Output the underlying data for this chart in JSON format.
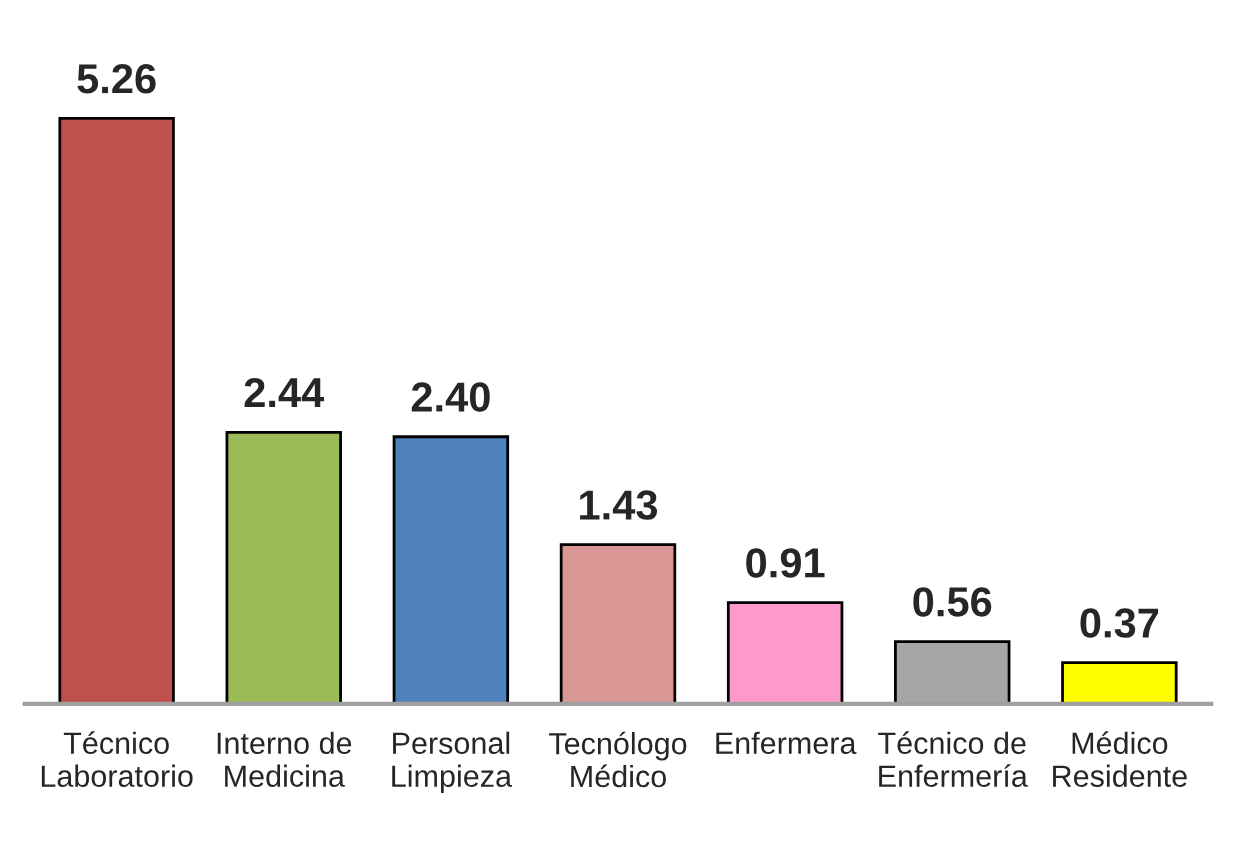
{
  "chart_data": {
    "type": "bar",
    "categories": [
      "Técnico\nLaboratorio",
      "Interno de\nMedicina",
      "Personal\nLimpieza",
      "Tecnólogo\nMédico",
      "Enfermera",
      "Técnico de\nEnfermería",
      "Médico\nResidente"
    ],
    "values": [
      5.26,
      2.44,
      2.4,
      1.43,
      0.91,
      0.56,
      0.37
    ],
    "value_labels": [
      "5.26",
      "2.44",
      "2.40",
      "1.43",
      "0.91",
      "0.56",
      "0.37"
    ],
    "colors": [
      "#c0504d",
      "#9bbb59",
      "#4f81bd",
      "#d99694",
      "#ff99cc",
      "#a6a6a6",
      "#ffff00"
    ],
    "tick_labels": "x"
  }
}
